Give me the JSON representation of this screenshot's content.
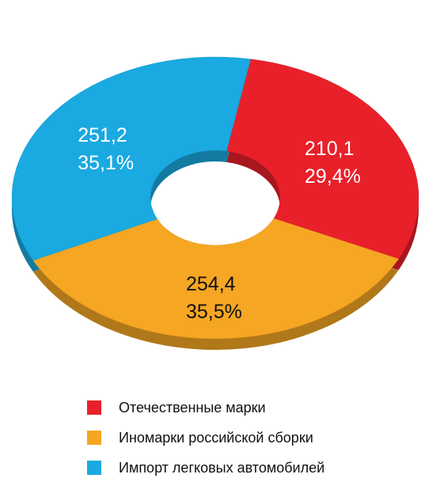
{
  "chart_data": {
    "type": "donut",
    "categories": [
      "Отечественные марки",
      "Иномарки российской сборки",
      "Импорт легковых автомобилей"
    ],
    "values": [
      210.1,
      254.4,
      251.2
    ],
    "value_labels": [
      "210,1",
      "254,4",
      "251,2"
    ],
    "percentages": [
      29.4,
      35.5,
      35.1
    ],
    "percentage_labels": [
      "29,4%",
      "35,5%",
      "35,1%"
    ],
    "colors": [
      "#e8202a",
      "#f5a623",
      "#1aa9e0"
    ]
  }
}
